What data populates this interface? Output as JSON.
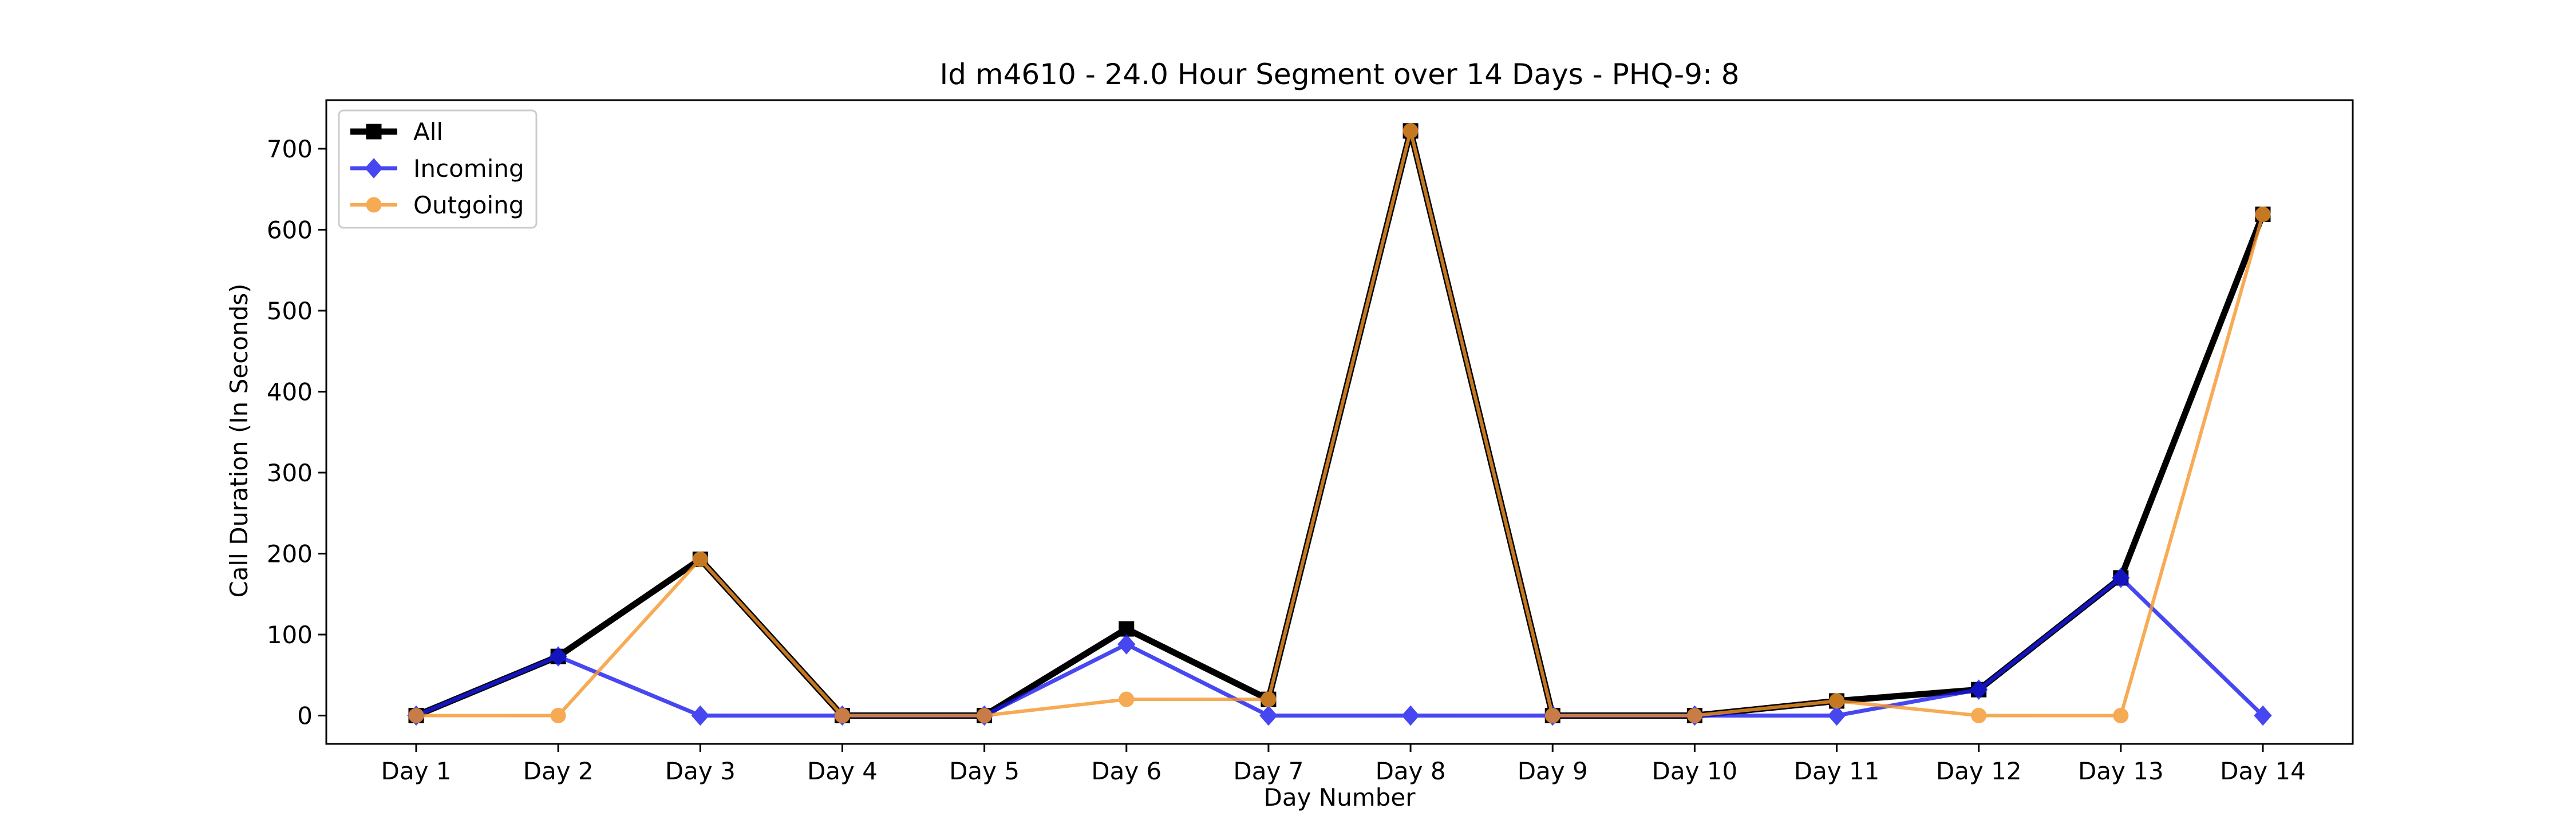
{
  "chart_data": {
    "type": "line",
    "title": "Id m4610 - 24.0 Hour Segment over 14 Days - PHQ-9: 8",
    "xlabel": "Day Number",
    "ylabel": "Call Duration (In Seconds)",
    "categories": [
      "Day 1",
      "Day 2",
      "Day 3",
      "Day 4",
      "Day 5",
      "Day 6",
      "Day 7",
      "Day 8",
      "Day 9",
      "Day 10",
      "Day 11",
      "Day 12",
      "Day 13",
      "Day 14"
    ],
    "ylim": [
      -35,
      760
    ],
    "yticks": [
      0,
      100,
      200,
      300,
      400,
      500,
      600,
      700
    ],
    "legend_position": "top-left",
    "grid": false,
    "series": [
      {
        "name": "All",
        "values": [
          0,
          73,
          193,
          0,
          0,
          107,
          20,
          722,
          0,
          0,
          18,
          32,
          170,
          619
        ],
        "color": "#000000",
        "marker": "square"
      },
      {
        "name": "Incoming",
        "values": [
          0,
          73,
          0,
          0,
          0,
          88,
          0,
          0,
          0,
          0,
          0,
          32,
          170,
          0
        ],
        "color": "#1a1aee",
        "marker": "diamond"
      },
      {
        "name": "Outgoing",
        "values": [
          0,
          0,
          193,
          0,
          0,
          20,
          20,
          722,
          0,
          0,
          18,
          0,
          0,
          619
        ],
        "color": "#f5962a",
        "marker": "circle"
      }
    ]
  }
}
